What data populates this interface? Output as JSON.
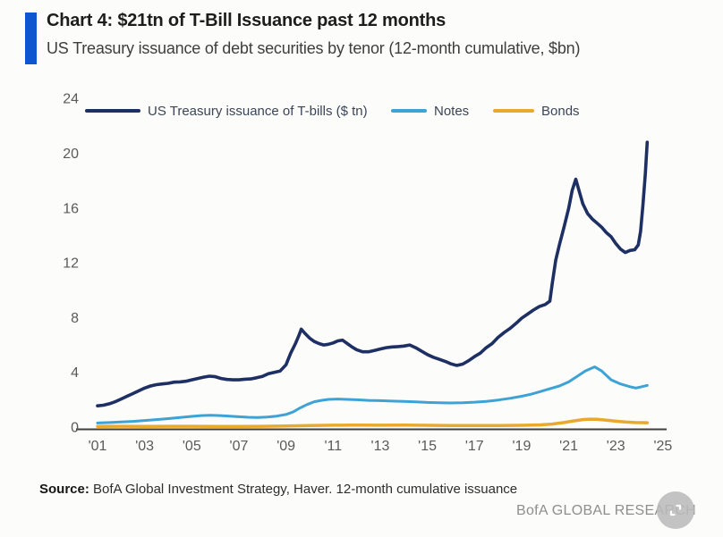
{
  "header": {
    "title": "Chart 4: $21tn of T-Bill Issuance past 12 months",
    "subtitle": "US Treasury issuance of debt securities by tenor (12-month cumulative, $bn)",
    "accent_color": "#0d56d0"
  },
  "legend": [
    {
      "label": "US Treasury issuance of T-bills ($ tn)",
      "color": "#1d2f63"
    },
    {
      "label": "Notes",
      "color": "#3da2d4"
    },
    {
      "label": "Bonds",
      "color": "#e9a92c"
    }
  ],
  "footer": {
    "source_label": "Source:",
    "source_text": " BofA Global Investment Strategy, Haver. 12-month cumulative issuance",
    "watermark": "BofA GLOBAL RESEARCH"
  },
  "chart_data": {
    "type": "line",
    "title": "Chart 4: $21tn of T-Bill Issuance past 12 months",
    "subtitle": "US Treasury issuance of debt securities by tenor (12-month cumulative, $bn)",
    "xlabel": "",
    "ylabel": "",
    "xlim": [
      2001,
      2025
    ],
    "ylim": [
      0,
      24
    ],
    "grid": false,
    "legend_position": "top",
    "yticks": [
      "24",
      "20",
      "16",
      "12",
      "8",
      "4",
      "0"
    ],
    "ytick_values": [
      24,
      20,
      16,
      12,
      8,
      4,
      0
    ],
    "xticks": [
      "'01",
      "'03",
      "'05",
      "'07",
      "'09",
      "'11",
      "'13",
      "'15",
      "'17",
      "'19",
      "'21",
      "'23",
      "'25"
    ],
    "xtick_values": [
      2001,
      2003,
      2005,
      2007,
      2009,
      2011,
      2013,
      2015,
      2017,
      2019,
      2021,
      2023,
      2025
    ],
    "axis_color": "#3f3f3f",
    "tick_color": "#5a5a5a",
    "series": [
      {
        "name": "Bonds",
        "color": "#e9a92c",
        "width": 3.5,
        "points": [
          [
            2001.0,
            0.05
          ],
          [
            2002.0,
            0.06
          ],
          [
            2003.0,
            0.05
          ],
          [
            2004.0,
            0.06
          ],
          [
            2005.0,
            0.06
          ],
          [
            2006.0,
            0.05
          ],
          [
            2007.0,
            0.05
          ],
          [
            2008.0,
            0.06
          ],
          [
            2009.0,
            0.08
          ],
          [
            2010.0,
            0.12
          ],
          [
            2011.0,
            0.14
          ],
          [
            2012.0,
            0.15
          ],
          [
            2013.0,
            0.14
          ],
          [
            2014.0,
            0.15
          ],
          [
            2015.0,
            0.13
          ],
          [
            2016.0,
            0.12
          ],
          [
            2017.0,
            0.11
          ],
          [
            2018.0,
            0.11
          ],
          [
            2019.0,
            0.13
          ],
          [
            2019.8,
            0.16
          ],
          [
            2020.3,
            0.22
          ],
          [
            2020.8,
            0.33
          ],
          [
            2021.2,
            0.45
          ],
          [
            2021.6,
            0.55
          ],
          [
            2021.9,
            0.58
          ],
          [
            2022.2,
            0.57
          ],
          [
            2022.6,
            0.5
          ],
          [
            2023.0,
            0.43
          ],
          [
            2023.4,
            0.37
          ],
          [
            2023.8,
            0.33
          ],
          [
            2024.33,
            0.32
          ]
        ]
      },
      {
        "name": "Notes",
        "color": "#3da2d4",
        "width": 3,
        "points": [
          [
            2001.0,
            0.3
          ],
          [
            2001.5,
            0.33
          ],
          [
            2002.0,
            0.37
          ],
          [
            2002.5,
            0.42
          ],
          [
            2003.0,
            0.48
          ],
          [
            2003.5,
            0.55
          ],
          [
            2004.0,
            0.62
          ],
          [
            2004.5,
            0.7
          ],
          [
            2005.0,
            0.78
          ],
          [
            2005.4,
            0.84
          ],
          [
            2005.8,
            0.86
          ],
          [
            2006.2,
            0.84
          ],
          [
            2006.6,
            0.8
          ],
          [
            2007.0,
            0.76
          ],
          [
            2007.4,
            0.72
          ],
          [
            2007.8,
            0.7
          ],
          [
            2008.2,
            0.73
          ],
          [
            2008.6,
            0.8
          ],
          [
            2009.0,
            0.92
          ],
          [
            2009.3,
            1.1
          ],
          [
            2009.6,
            1.4
          ],
          [
            2009.9,
            1.65
          ],
          [
            2010.2,
            1.85
          ],
          [
            2010.5,
            1.95
          ],
          [
            2010.8,
            2.02
          ],
          [
            2011.2,
            2.05
          ],
          [
            2011.6,
            2.02
          ],
          [
            2012.0,
            2.0
          ],
          [
            2012.5,
            1.95
          ],
          [
            2013.0,
            1.93
          ],
          [
            2013.5,
            1.9
          ],
          [
            2014.0,
            1.88
          ],
          [
            2014.5,
            1.84
          ],
          [
            2015.0,
            1.8
          ],
          [
            2015.5,
            1.78
          ],
          [
            2016.0,
            1.76
          ],
          [
            2016.5,
            1.78
          ],
          [
            2017.0,
            1.82
          ],
          [
            2017.5,
            1.88
          ],
          [
            2018.0,
            1.98
          ],
          [
            2018.5,
            2.1
          ],
          [
            2019.0,
            2.25
          ],
          [
            2019.4,
            2.4
          ],
          [
            2019.8,
            2.6
          ],
          [
            2020.2,
            2.8
          ],
          [
            2020.6,
            3.0
          ],
          [
            2021.0,
            3.3
          ],
          [
            2021.4,
            3.75
          ],
          [
            2021.7,
            4.1
          ],
          [
            2022.1,
            4.4
          ],
          [
            2022.4,
            4.1
          ],
          [
            2022.8,
            3.45
          ],
          [
            2023.2,
            3.15
          ],
          [
            2023.6,
            2.95
          ],
          [
            2023.85,
            2.85
          ],
          [
            2024.1,
            2.95
          ],
          [
            2024.33,
            3.05
          ]
        ]
      },
      {
        "name": "US Treasury issuance of T-bills ($ tn)",
        "color": "#1d2f63",
        "width": 3.6,
        "points": [
          [
            2001.0,
            1.55
          ],
          [
            2001.25,
            1.6
          ],
          [
            2001.5,
            1.7
          ],
          [
            2001.75,
            1.85
          ],
          [
            2002.0,
            2.05
          ],
          [
            2002.25,
            2.25
          ],
          [
            2002.5,
            2.45
          ],
          [
            2002.75,
            2.65
          ],
          [
            2003.0,
            2.85
          ],
          [
            2003.25,
            3.0
          ],
          [
            2003.5,
            3.1
          ],
          [
            2003.75,
            3.15
          ],
          [
            2004.0,
            3.2
          ],
          [
            2004.25,
            3.28
          ],
          [
            2004.5,
            3.3
          ],
          [
            2004.75,
            3.35
          ],
          [
            2005.0,
            3.45
          ],
          [
            2005.25,
            3.55
          ],
          [
            2005.5,
            3.65
          ],
          [
            2005.75,
            3.72
          ],
          [
            2006.0,
            3.68
          ],
          [
            2006.25,
            3.55
          ],
          [
            2006.5,
            3.48
          ],
          [
            2006.75,
            3.45
          ],
          [
            2007.0,
            3.45
          ],
          [
            2007.25,
            3.5
          ],
          [
            2007.5,
            3.52
          ],
          [
            2007.75,
            3.6
          ],
          [
            2008.0,
            3.7
          ],
          [
            2008.25,
            3.9
          ],
          [
            2008.5,
            4.0
          ],
          [
            2008.75,
            4.1
          ],
          [
            2009.0,
            4.55
          ],
          [
            2009.2,
            5.4
          ],
          [
            2009.4,
            6.1
          ],
          [
            2009.55,
            6.7
          ],
          [
            2009.65,
            7.15
          ],
          [
            2009.8,
            6.85
          ],
          [
            2010.0,
            6.5
          ],
          [
            2010.2,
            6.25
          ],
          [
            2010.4,
            6.1
          ],
          [
            2010.6,
            6.0
          ],
          [
            2010.8,
            6.05
          ],
          [
            2011.0,
            6.15
          ],
          [
            2011.2,
            6.3
          ],
          [
            2011.4,
            6.35
          ],
          [
            2011.6,
            6.1
          ],
          [
            2011.8,
            5.85
          ],
          [
            2012.0,
            5.65
          ],
          [
            2012.25,
            5.5
          ],
          [
            2012.5,
            5.5
          ],
          [
            2012.75,
            5.6
          ],
          [
            2013.0,
            5.7
          ],
          [
            2013.25,
            5.8
          ],
          [
            2013.5,
            5.85
          ],
          [
            2013.75,
            5.88
          ],
          [
            2014.0,
            5.92
          ],
          [
            2014.25,
            6.0
          ],
          [
            2014.5,
            5.8
          ],
          [
            2014.75,
            5.55
          ],
          [
            2015.0,
            5.3
          ],
          [
            2015.25,
            5.1
          ],
          [
            2015.5,
            4.95
          ],
          [
            2015.75,
            4.8
          ],
          [
            2016.0,
            4.62
          ],
          [
            2016.25,
            4.5
          ],
          [
            2016.5,
            4.6
          ],
          [
            2016.75,
            4.85
          ],
          [
            2017.0,
            5.15
          ],
          [
            2017.25,
            5.4
          ],
          [
            2017.5,
            5.8
          ],
          [
            2017.75,
            6.1
          ],
          [
            2018.0,
            6.55
          ],
          [
            2018.25,
            6.9
          ],
          [
            2018.5,
            7.2
          ],
          [
            2018.75,
            7.55
          ],
          [
            2019.0,
            7.95
          ],
          [
            2019.25,
            8.25
          ],
          [
            2019.5,
            8.55
          ],
          [
            2019.75,
            8.8
          ],
          [
            2020.0,
            8.95
          ],
          [
            2020.2,
            9.2
          ],
          [
            2020.3,
            10.5
          ],
          [
            2020.45,
            12.2
          ],
          [
            2020.6,
            13.3
          ],
          [
            2020.8,
            14.6
          ],
          [
            2021.0,
            16.0
          ],
          [
            2021.15,
            17.3
          ],
          [
            2021.3,
            18.1
          ],
          [
            2021.45,
            17.2
          ],
          [
            2021.6,
            16.3
          ],
          [
            2021.8,
            15.6
          ],
          [
            2022.0,
            15.2
          ],
          [
            2022.2,
            14.9
          ],
          [
            2022.4,
            14.6
          ],
          [
            2022.6,
            14.2
          ],
          [
            2022.8,
            13.9
          ],
          [
            2023.0,
            13.4
          ],
          [
            2023.2,
            13.0
          ],
          [
            2023.4,
            12.75
          ],
          [
            2023.6,
            12.9
          ],
          [
            2023.8,
            12.95
          ],
          [
            2023.95,
            13.3
          ],
          [
            2024.05,
            14.3
          ],
          [
            2024.15,
            16.2
          ],
          [
            2024.25,
            18.5
          ],
          [
            2024.33,
            20.8
          ]
        ]
      }
    ]
  }
}
